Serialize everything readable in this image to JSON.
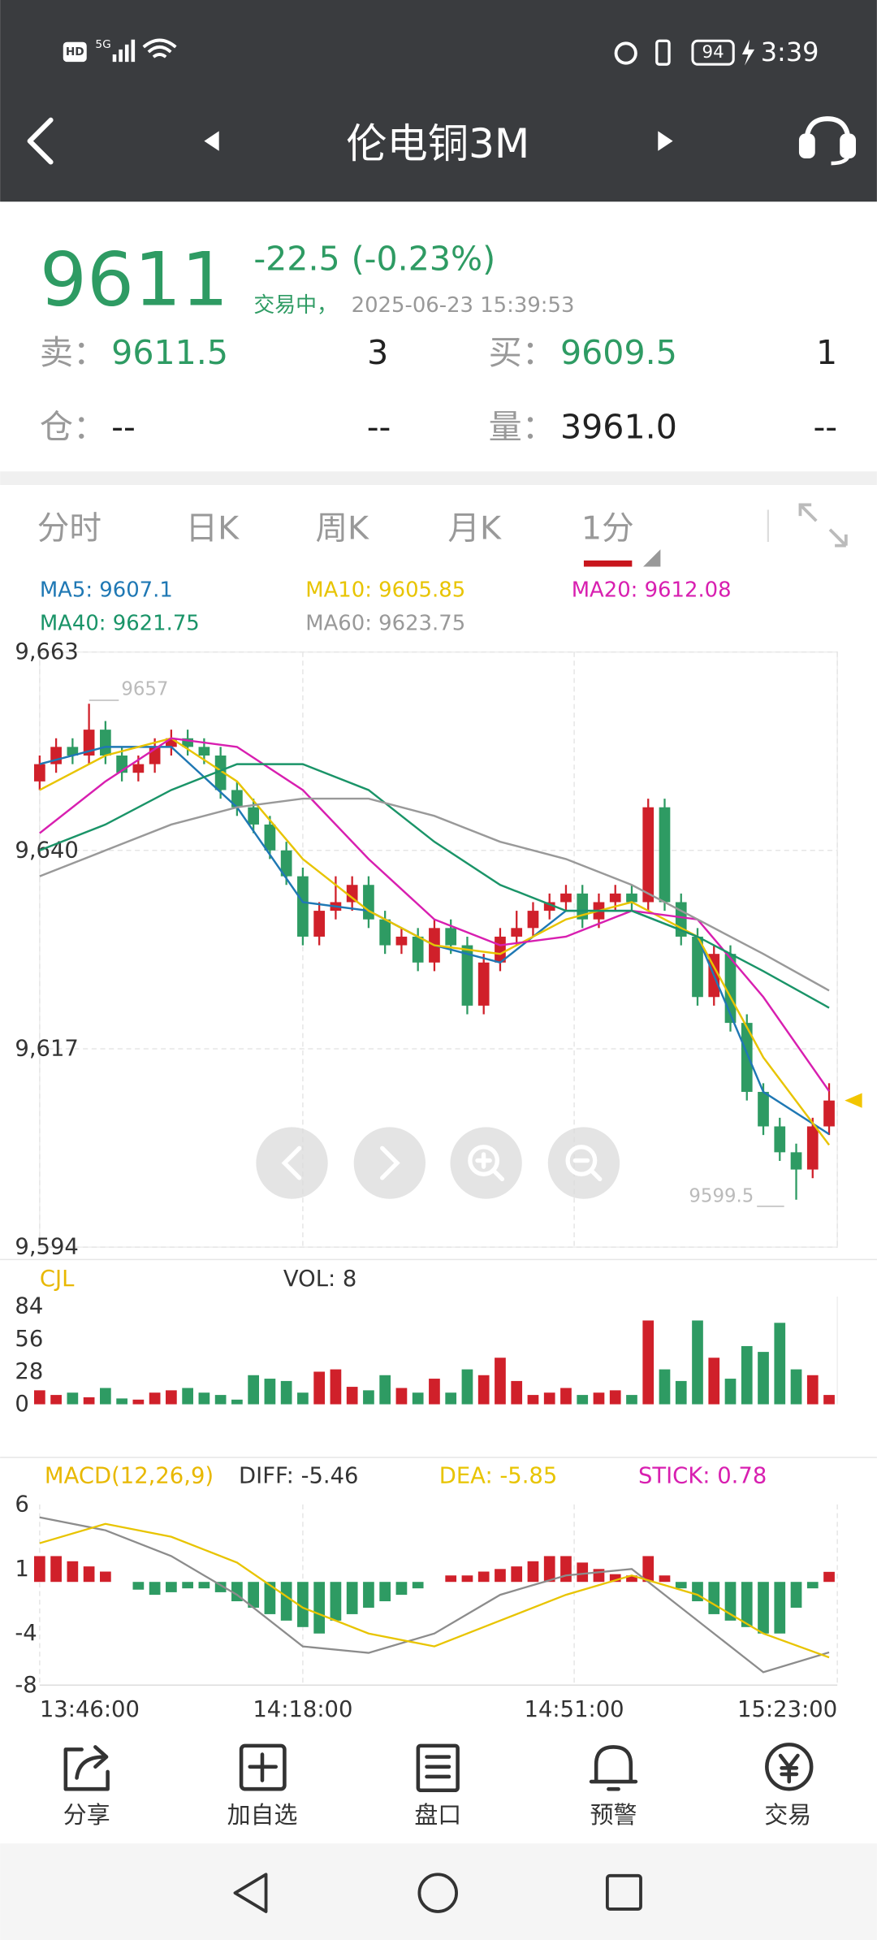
{
  "status_bar": {
    "network": "HD",
    "signal": "5G",
    "battery": "94",
    "time": "3:39"
  },
  "header": {
    "title": "伦电铜3M"
  },
  "quote": {
    "price": "9611",
    "change": "-22.5",
    "change_pct": "(-0.23%)",
    "status": "交易中，",
    "timestamp": "2025-06-23 15:39:53",
    "sell_label": "卖：",
    "sell_price": "9611.5",
    "sell_qty": "3",
    "buy_label": "买：",
    "buy_price": "9609.5",
    "buy_qty": "1",
    "oi_label": "仓：",
    "oi": "--",
    "oi_change": "--",
    "volume_label": "量：",
    "volume": "3961.0",
    "volume_change": "--"
  },
  "tabs": [
    "分时",
    "日K",
    "周K",
    "月K",
    "1分"
  ],
  "toolbar": [
    "分享",
    "加自选",
    "盘口",
    "预警",
    "交易"
  ],
  "chart_data": [
    {
      "type": "candlestick",
      "x": [
        0,
        2,
        4,
        6,
        8,
        10,
        12,
        14,
        16,
        18,
        20,
        22,
        24,
        26,
        28,
        30,
        32,
        34,
        36,
        38,
        40,
        42,
        44,
        46,
        48,
        50,
        52,
        54,
        56,
        58,
        60,
        62,
        64,
        66,
        68,
        70,
        72,
        74,
        76,
        78,
        80,
        82,
        84,
        86,
        88,
        90,
        92,
        94,
        96
      ],
      "open": [
        9648,
        9650,
        9652,
        9651,
        9654,
        9651,
        9649,
        9650,
        9652,
        9653,
        9652,
        9651,
        9647,
        9645,
        9643,
        9640,
        9637,
        9630,
        9633,
        9634,
        9636,
        9632,
        9629,
        9630,
        9627,
        9631,
        9629,
        9622,
        9627,
        9630,
        9631,
        9633,
        9634,
        9635,
        9632,
        9634,
        9635,
        9634,
        9645,
        9634,
        9630,
        9623,
        9628,
        9620,
        9612,
        9608,
        9605,
        9603,
        9608
      ],
      "high": [
        9651,
        9653,
        9653,
        9657,
        9655,
        9652,
        9651,
        9653,
        9654,
        9654,
        9653,
        9652,
        9648,
        9646,
        9644,
        9641,
        9638,
        9634,
        9637,
        9637,
        9637,
        9633,
        9631,
        9631,
        9632,
        9632,
        9630,
        9628,
        9631,
        9633,
        9634,
        9635,
        9636,
        9636,
        9635,
        9636,
        9636,
        9646,
        9646,
        9635,
        9631,
        9629,
        9629,
        9621,
        9613,
        9609,
        9606,
        9609,
        9613
      ],
      "low": [
        9647,
        9649,
        9650,
        9650,
        9650,
        9648,
        9648,
        9649,
        9651,
        9651,
        9650,
        9646,
        9644,
        9642,
        9639,
        9636,
        9629,
        9629,
        9632,
        9633,
        9631,
        9628,
        9628,
        9626,
        9626,
        9628,
        9621,
        9621,
        9626,
        9629,
        9630,
        9632,
        9633,
        9631,
        9631,
        9633,
        9633,
        9633,
        9633,
        9629,
        9622,
        9622,
        9619,
        9611,
        9607,
        9604,
        9599.5,
        9602,
        9607
      ],
      "close": [
        9650,
        9652,
        9651,
        9654,
        9651,
        9649,
        9650,
        9652,
        9653,
        9652,
        9651,
        9647,
        9645,
        9643,
        9640,
        9637,
        9630,
        9633,
        9634,
        9636,
        9632,
        9629,
        9630,
        9627,
        9631,
        9629,
        9622,
        9627,
        9630,
        9631,
        9633,
        9634,
        9635,
        9632,
        9634,
        9635,
        9634,
        9645,
        9634,
        9630,
        9623,
        9628,
        9620,
        9612,
        9608,
        9605,
        9603,
        9608,
        9611
      ],
      "up_color": "#d0202a",
      "down_color": "#2e9b63",
      "series": [
        {
          "name": "MA5: 9607.1",
          "color": "#1f78b4",
          "x": [
            0,
            8,
            16,
            24,
            32,
            40,
            48,
            56,
            64,
            72,
            80,
            88,
            96
          ],
          "values": [
            9650,
            9652,
            9652,
            9645,
            9634,
            9633,
            9629,
            9627,
            9633,
            9633,
            9630,
            9612,
            9607.1
          ]
        },
        {
          "name": "MA10: 9605.85",
          "color": "#e8c400",
          "x": [
            0,
            8,
            16,
            24,
            32,
            40,
            48,
            56,
            64,
            72,
            80,
            88,
            96
          ],
          "values": [
            9647,
            9651,
            9653,
            9648,
            9639,
            9633,
            9629,
            9628,
            9632,
            9634,
            9630,
            9616,
            9605.85
          ]
        },
        {
          "name": "MA20: 9612.08",
          "color": "#d81fb0",
          "x": [
            0,
            8,
            16,
            24,
            32,
            40,
            48,
            56,
            64,
            72,
            80,
            88,
            96
          ],
          "values": [
            9642,
            9648,
            9653,
            9652,
            9647,
            9639,
            9632,
            9629,
            9630,
            9633,
            9632,
            9623,
            9612.08
          ]
        },
        {
          "name": "MA40: 9621.75",
          "color": "#1a9468",
          "x": [
            0,
            8,
            16,
            24,
            32,
            40,
            48,
            56,
            64,
            72,
            80,
            88,
            96
          ],
          "values": [
            9640,
            9643,
            9647,
            9650,
            9650,
            9647,
            9641,
            9636,
            9633,
            9633,
            9630,
            9626,
            9621.75
          ]
        },
        {
          "name": "MA60: 9623.75",
          "color": "#999999",
          "x": [
            0,
            8,
            16,
            24,
            32,
            40,
            48,
            56,
            64,
            72,
            80,
            88,
            96
          ],
          "values": [
            9637,
            9640,
            9643,
            9645,
            9646,
            9646,
            9644,
            9641,
            9639,
            9636,
            9632,
            9628,
            9623.75
          ]
        }
      ],
      "annotations": [
        "9657",
        "9599.5"
      ],
      "marker_color": "#f2c500",
      "xlim": [
        0,
        97
      ],
      "ylim": [
        9594,
        9663
      ],
      "yticks": [
        {
          "value": 9594,
          "label": "9,594"
        },
        {
          "value": 9617,
          "label": "9,617"
        },
        {
          "value": 9640,
          "label": "9,640"
        },
        {
          "value": 9663,
          "label": "9,663"
        }
      ],
      "grid": true
    },
    {
      "type": "bar",
      "title": "CJL",
      "x": [
        0,
        2,
        4,
        6,
        8,
        10,
        12,
        14,
        16,
        18,
        20,
        22,
        24,
        26,
        28,
        30,
        32,
        34,
        36,
        38,
        40,
        42,
        44,
        46,
        48,
        50,
        52,
        54,
        56,
        58,
        60,
        62,
        64,
        66,
        68,
        70,
        72,
        74,
        76,
        78,
        80,
        82,
        84,
        86,
        88,
        90,
        92,
        94,
        96
      ],
      "series": [
        {
          "name": "VOL: 8",
          "values": [
            12,
            8,
            10,
            6,
            14,
            5,
            4,
            10,
            12,
            14,
            10,
            8,
            4,
            25,
            22,
            20,
            10,
            28,
            30,
            15,
            12,
            25,
            14,
            10,
            22,
            10,
            30,
            25,
            40,
            20,
            8,
            10,
            14,
            8,
            10,
            12,
            8,
            72,
            30,
            20,
            72,
            40,
            22,
            50,
            45,
            70,
            30,
            25,
            8
          ]
        }
      ],
      "title_color": "#e8b800",
      "xlim": [
        0,
        97
      ],
      "ylim": [
        0,
        84
      ],
      "yticks": [
        0,
        28,
        56,
        84
      ]
    },
    {
      "type": "macd",
      "title": "MACD(12,26,9)",
      "title_color": "#e8b800",
      "series": [
        {
          "name": "DIFF: -5.46",
          "color": "#8c8c8c",
          "x": [
            0,
            8,
            16,
            24,
            32,
            40,
            48,
            56,
            64,
            72,
            80,
            88,
            96
          ],
          "values": [
            5,
            4,
            2,
            -1,
            -5,
            -5.5,
            -4,
            -1,
            0.5,
            1,
            -3,
            -7,
            -5.46
          ]
        },
        {
          "name": "DEA: -5.85",
          "color": "#e8c400",
          "x": [
            0,
            8,
            16,
            24,
            32,
            40,
            48,
            56,
            64,
            72,
            80,
            88,
            96
          ],
          "values": [
            3,
            4.5,
            3.5,
            1.5,
            -2,
            -4,
            -5,
            -3,
            -1,
            0.5,
            -1,
            -4,
            -5.85
          ]
        },
        {
          "name": "STICK: 0.78",
          "color": "#d81fb0",
          "type": "bar",
          "x": [
            0,
            2,
            4,
            6,
            8,
            10,
            12,
            14,
            16,
            18,
            20,
            22,
            24,
            26,
            28,
            30,
            32,
            34,
            36,
            38,
            40,
            42,
            44,
            46,
            48,
            50,
            52,
            54,
            56,
            58,
            60,
            62,
            64,
            66,
            68,
            70,
            72,
            74,
            76,
            78,
            80,
            82,
            84,
            86,
            88,
            90,
            92,
            94,
            96
          ],
          "values": [
            2,
            2,
            1.6,
            1.2,
            0.8,
            0,
            -0.6,
            -1,
            -0.8,
            -0.5,
            -0.5,
            -0.8,
            -1.5,
            -2,
            -2.5,
            -3,
            -3.5,
            -4,
            -3,
            -2.5,
            -2,
            -1.5,
            -1,
            -0.5,
            0,
            0.5,
            0.5,
            0.8,
            1,
            1.2,
            1.6,
            2,
            2,
            1.5,
            1,
            0.6,
            0.5,
            2,
            0.5,
            -0.5,
            -1.5,
            -2.5,
            -3,
            -3.5,
            -4,
            -4,
            -2,
            -0.5,
            0.78
          ]
        }
      ],
      "up_color": "#d0202a",
      "down_color": "#2e9b63",
      "xlim": [
        0,
        97
      ],
      "xticks": [
        {
          "value": 0,
          "label": "13:46:00"
        },
        {
          "value": 32,
          "label": "14:18:00"
        },
        {
          "value": 65,
          "label": "14:51:00"
        },
        {
          "value": 97,
          "label": "15:23:00"
        }
      ],
      "ylim": [
        -8,
        6
      ],
      "yticks": [
        -8,
        -4,
        1,
        6
      ]
    }
  ]
}
